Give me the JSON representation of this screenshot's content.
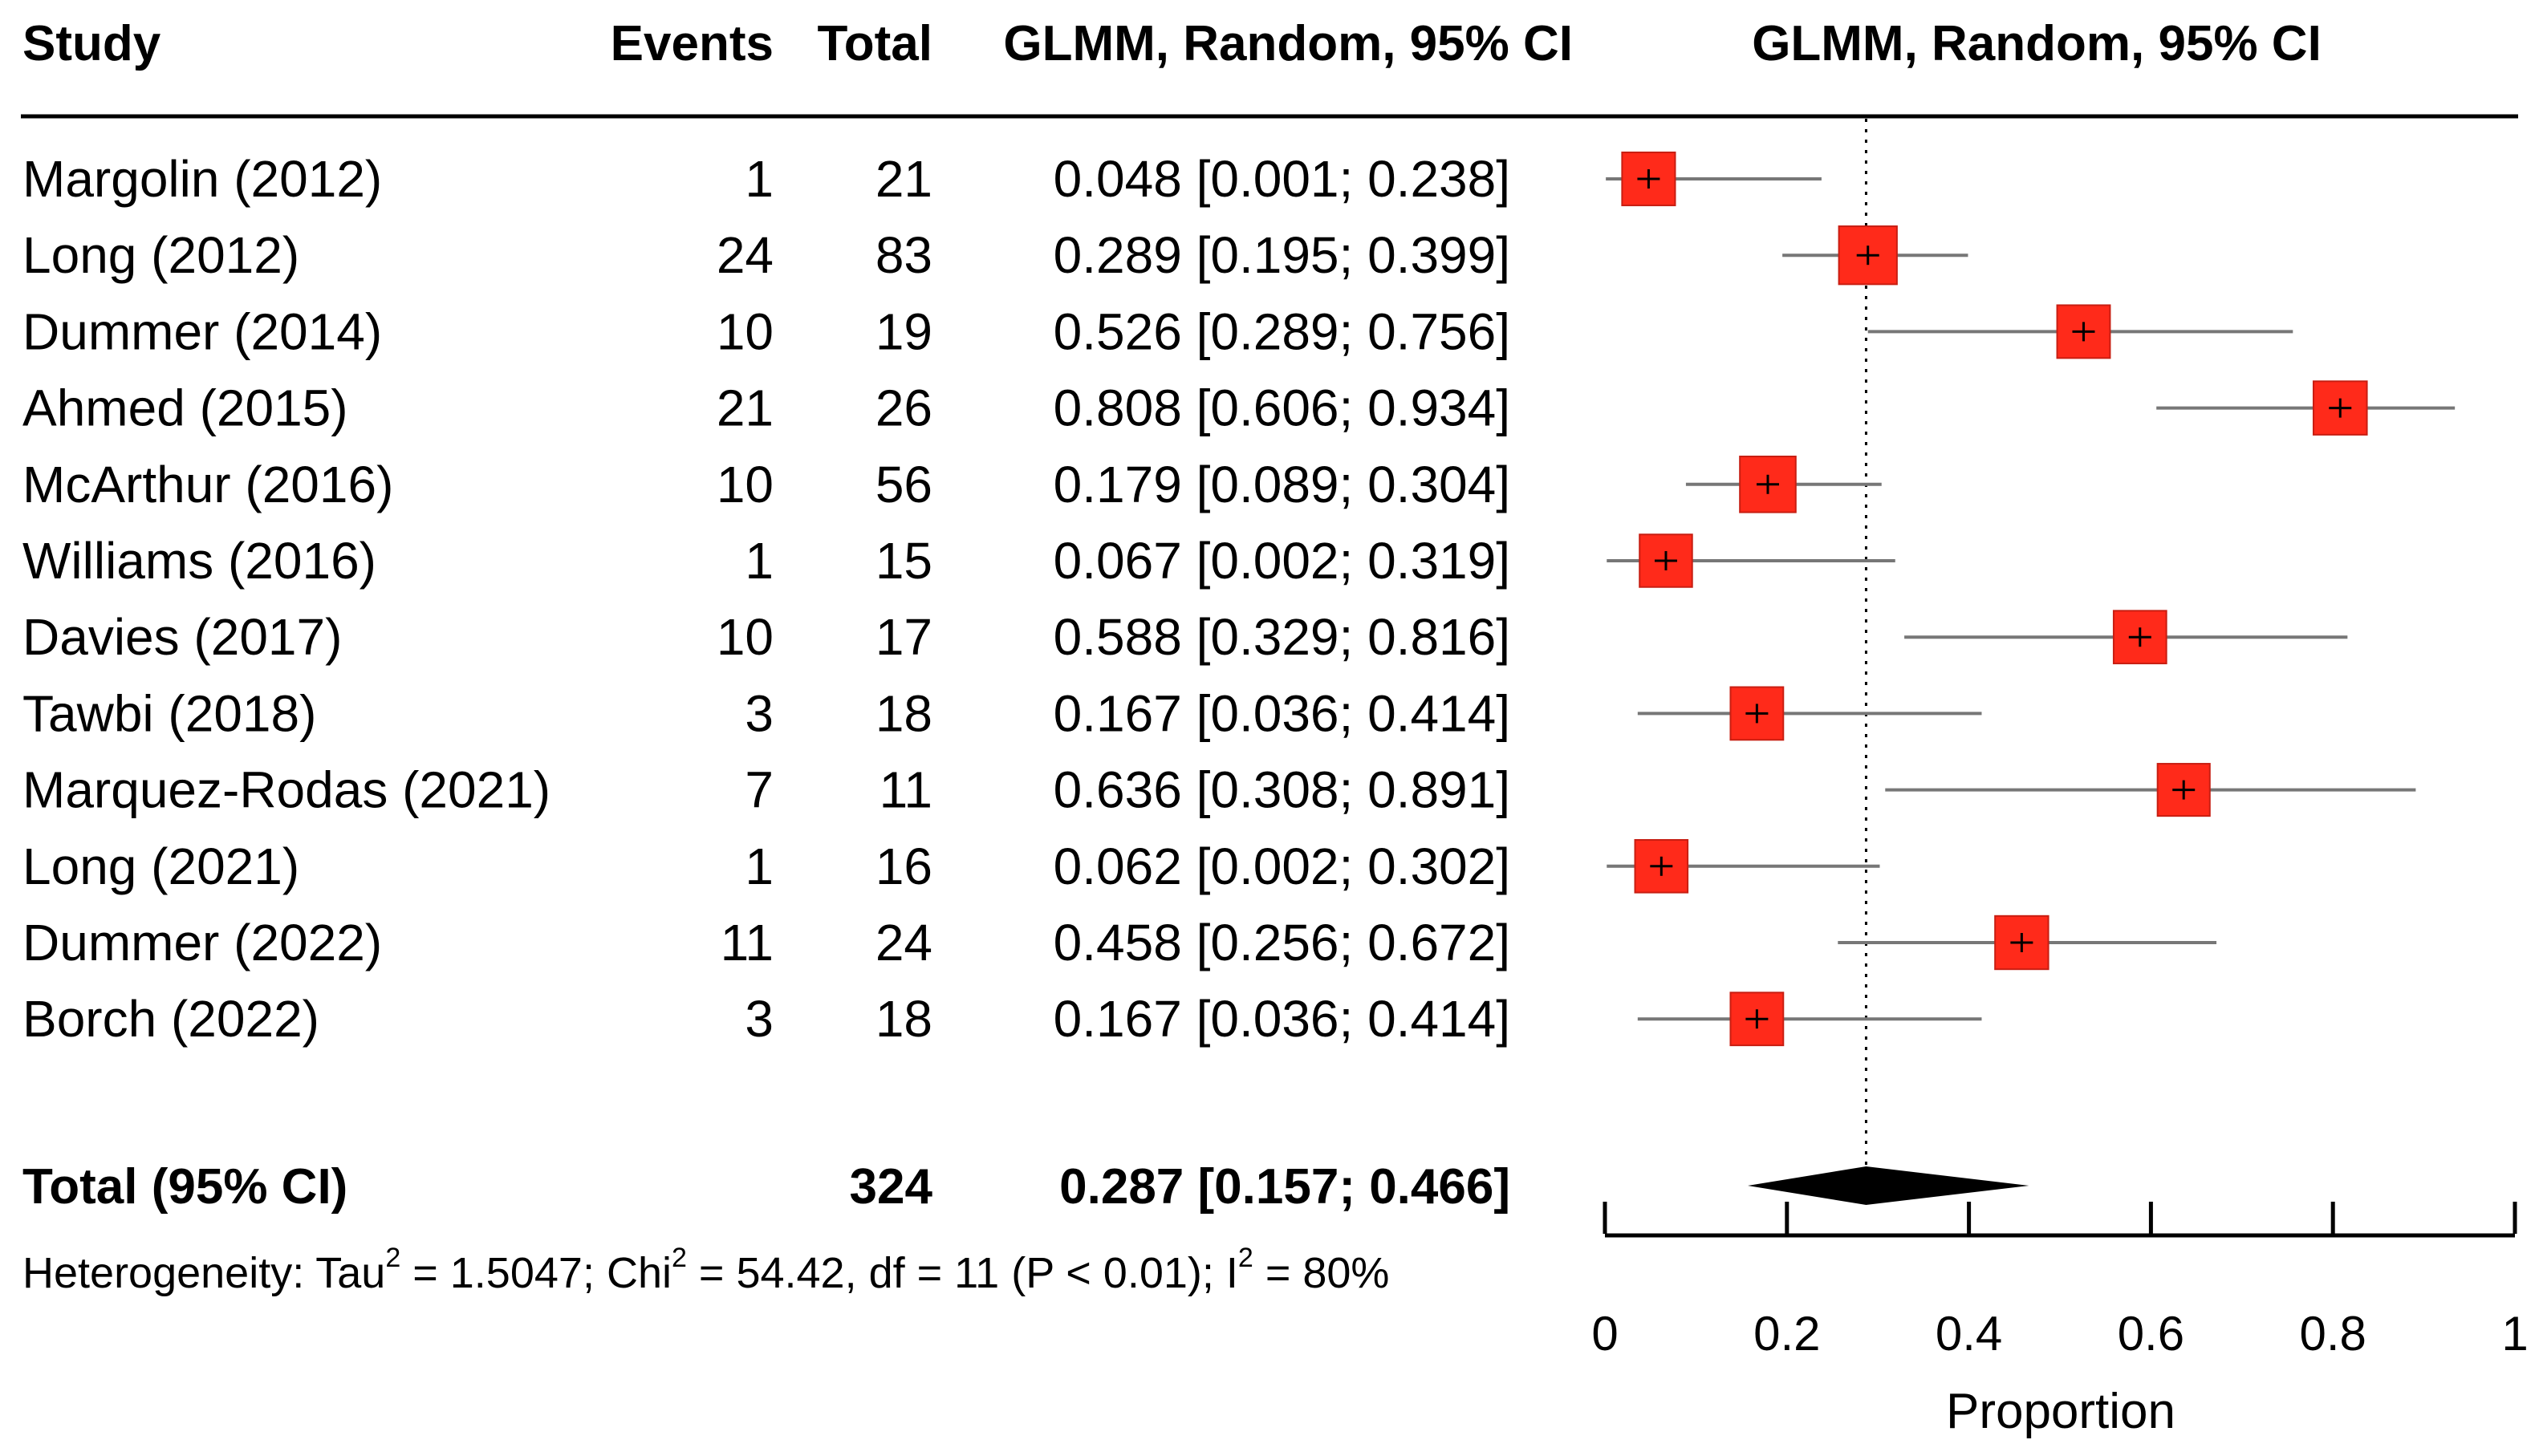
{
  "chart_data": {
    "type": "forest",
    "headers": {
      "study": "Study",
      "events": "Events",
      "total": "Total",
      "estimate": "GLMM, Random, 95% CI",
      "plot": "GLMM, Random, 95% CI"
    },
    "studies": [
      {
        "study": "Margolin (2012)",
        "events": 1,
        "total": 21,
        "est": 0.048,
        "lo": 0.001,
        "hi": 0.238,
        "text": "0.048 [0.001; 0.238]"
      },
      {
        "study": "Long (2012)",
        "events": 24,
        "total": 83,
        "est": 0.289,
        "lo": 0.195,
        "hi": 0.399,
        "text": "0.289 [0.195; 0.399]"
      },
      {
        "study": "Dummer (2014)",
        "events": 10,
        "total": 19,
        "est": 0.526,
        "lo": 0.289,
        "hi": 0.756,
        "text": "0.526 [0.289; 0.756]"
      },
      {
        "study": "Ahmed (2015)",
        "events": 21,
        "total": 26,
        "est": 0.808,
        "lo": 0.606,
        "hi": 0.934,
        "text": "0.808 [0.606; 0.934]"
      },
      {
        "study": "McArthur (2016)",
        "events": 10,
        "total": 56,
        "est": 0.179,
        "lo": 0.089,
        "hi": 0.304,
        "text": "0.179 [0.089; 0.304]"
      },
      {
        "study": "Williams (2016)",
        "events": 1,
        "total": 15,
        "est": 0.067,
        "lo": 0.002,
        "hi": 0.319,
        "text": "0.067 [0.002; 0.319]"
      },
      {
        "study": "Davies (2017)",
        "events": 10,
        "total": 17,
        "est": 0.588,
        "lo": 0.329,
        "hi": 0.816,
        "text": "0.588 [0.329; 0.816]"
      },
      {
        "study": "Tawbi (2018)",
        "events": 3,
        "total": 18,
        "est": 0.167,
        "lo": 0.036,
        "hi": 0.414,
        "text": "0.167 [0.036; 0.414]"
      },
      {
        "study": "Marquez-Rodas (2021)",
        "events": 7,
        "total": 11,
        "est": 0.636,
        "lo": 0.308,
        "hi": 0.891,
        "text": "0.636 [0.308; 0.891]"
      },
      {
        "study": "Long (2021)",
        "events": 1,
        "total": 16,
        "est": 0.062,
        "lo": 0.002,
        "hi": 0.302,
        "text": "0.062 [0.002; 0.302]"
      },
      {
        "study": "Dummer (2022)",
        "events": 11,
        "total": 24,
        "est": 0.458,
        "lo": 0.256,
        "hi": 0.672,
        "text": "0.458 [0.256; 0.672]"
      },
      {
        "study": "Borch (2022)",
        "events": 3,
        "total": 18,
        "est": 0.167,
        "lo": 0.036,
        "hi": 0.414,
        "text": "0.167 [0.036; 0.414]"
      }
    ],
    "pooled": {
      "label": "Total (95% CI)",
      "total": 324,
      "est": 0.287,
      "lo": 0.157,
      "hi": 0.466,
      "text": "0.287 [0.157; 0.466]"
    },
    "heterogeneity": {
      "prefix": "Heterogeneity: Tau",
      "tau_sup": "2",
      "tau_val": " = 1.5047; Chi",
      "chi_sup": "2",
      "chi_val": " = 54.42, df = 11 (P < 0.01); I",
      "i_sup": "2",
      "i_val": " = 80%"
    },
    "xaxis": {
      "label": "Proportion",
      "min": 0,
      "max": 1,
      "ticks": [
        0,
        0.2,
        0.4,
        0.6,
        0.8,
        1
      ],
      "tick_labels": [
        "0",
        "0.2",
        "0.4",
        "0.6",
        "0.8",
        "1"
      ]
    },
    "reference_line": 0.287,
    "colors": {
      "box": "#ff2a1a",
      "box_edge": "#c81e12",
      "ci_line": "#777777",
      "diamond": "#000000"
    }
  }
}
